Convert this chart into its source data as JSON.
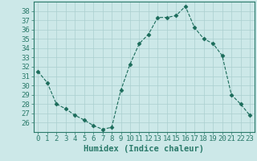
{
  "x": [
    0,
    1,
    2,
    3,
    4,
    5,
    6,
    7,
    8,
    9,
    10,
    11,
    12,
    13,
    14,
    15,
    16,
    17,
    18,
    19,
    20,
    21,
    22,
    23
  ],
  "y": [
    31.5,
    30.3,
    28.0,
    27.5,
    26.8,
    26.3,
    25.7,
    25.3,
    25.5,
    29.5,
    32.3,
    34.5,
    35.5,
    37.3,
    37.3,
    37.5,
    38.5,
    36.2,
    35.0,
    34.5,
    33.2,
    29.0,
    28.0,
    26.8
  ],
  "line_color": "#1a6b5a",
  "marker": "D",
  "marker_size": 2.5,
  "bg_color": "#cce8e8",
  "grid_color": "#aacfcf",
  "xlabel": "Humidex (Indice chaleur)",
  "ylabel": "",
  "xlim": [
    -0.5,
    23.5
  ],
  "ylim": [
    25.0,
    39.0
  ],
  "yticks": [
    26,
    27,
    28,
    29,
    30,
    31,
    32,
    33,
    34,
    35,
    36,
    37,
    38
  ],
  "xticks": [
    0,
    1,
    2,
    3,
    4,
    5,
    6,
    7,
    8,
    9,
    10,
    11,
    12,
    13,
    14,
    15,
    16,
    17,
    18,
    19,
    20,
    21,
    22,
    23
  ],
  "tick_label_fontsize": 6.5,
  "xlabel_fontsize": 7.5,
  "axis_color": "#2a7a6a"
}
